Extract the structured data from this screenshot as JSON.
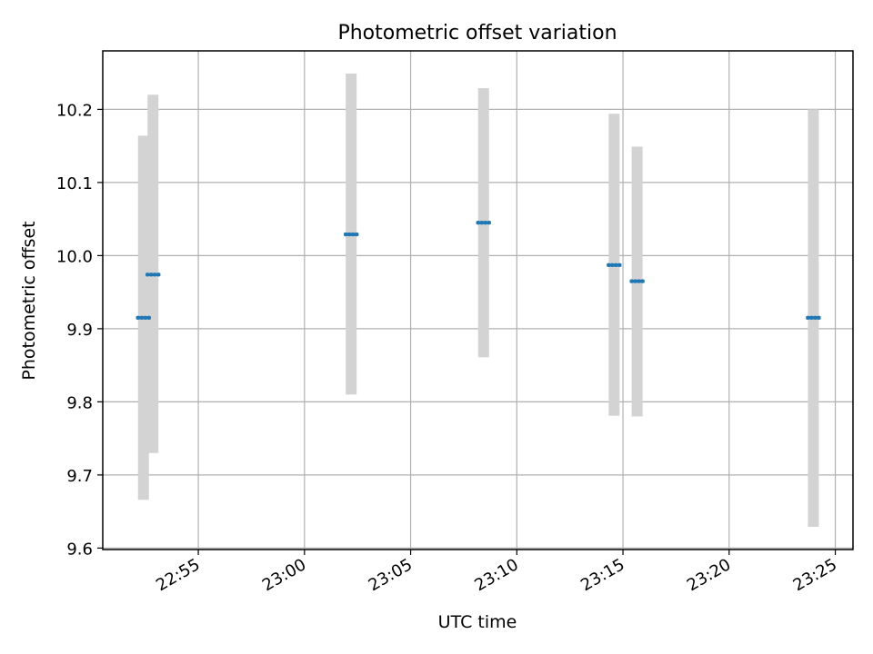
{
  "chart_data": {
    "type": "scatter",
    "title": "Photometric offset variation",
    "xlabel": "UTC time",
    "ylabel": "Photometric offset",
    "x_ticks": [
      "22:55",
      "23:00",
      "23:05",
      "23:10",
      "23:15",
      "23:20",
      "23:25"
    ],
    "y_ticks": [
      "9.6",
      "9.7",
      "9.8",
      "9.9",
      "10.0",
      "10.1",
      "10.2"
    ],
    "xlim": [
      "22:50:30",
      "23:25:50"
    ],
    "ylim": [
      9.598,
      10.28
    ],
    "grid": true,
    "colors": {
      "marker": "#1f77b4",
      "errorbar": "#d3d3d3",
      "grid": "#b0b0b0"
    },
    "points": [
      {
        "time": "22:52:25",
        "y": 9.915,
        "ylow": 9.666,
        "yhigh": 10.164
      },
      {
        "time": "22:52:52",
        "y": 9.974,
        "ylow": 9.73,
        "yhigh": 10.22
      },
      {
        "time": "23:02:12",
        "y": 10.029,
        "ylow": 9.81,
        "yhigh": 10.249
      },
      {
        "time": "23:08:26",
        "y": 10.045,
        "ylow": 9.861,
        "yhigh": 10.229
      },
      {
        "time": "23:14:35",
        "y": 9.987,
        "ylow": 9.781,
        "yhigh": 10.194
      },
      {
        "time": "23:15:40",
        "y": 9.965,
        "ylow": 9.78,
        "yhigh": 10.149
      },
      {
        "time": "23:23:58",
        "y": 9.915,
        "ylow": 9.629,
        "yhigh": 10.2
      }
    ]
  }
}
